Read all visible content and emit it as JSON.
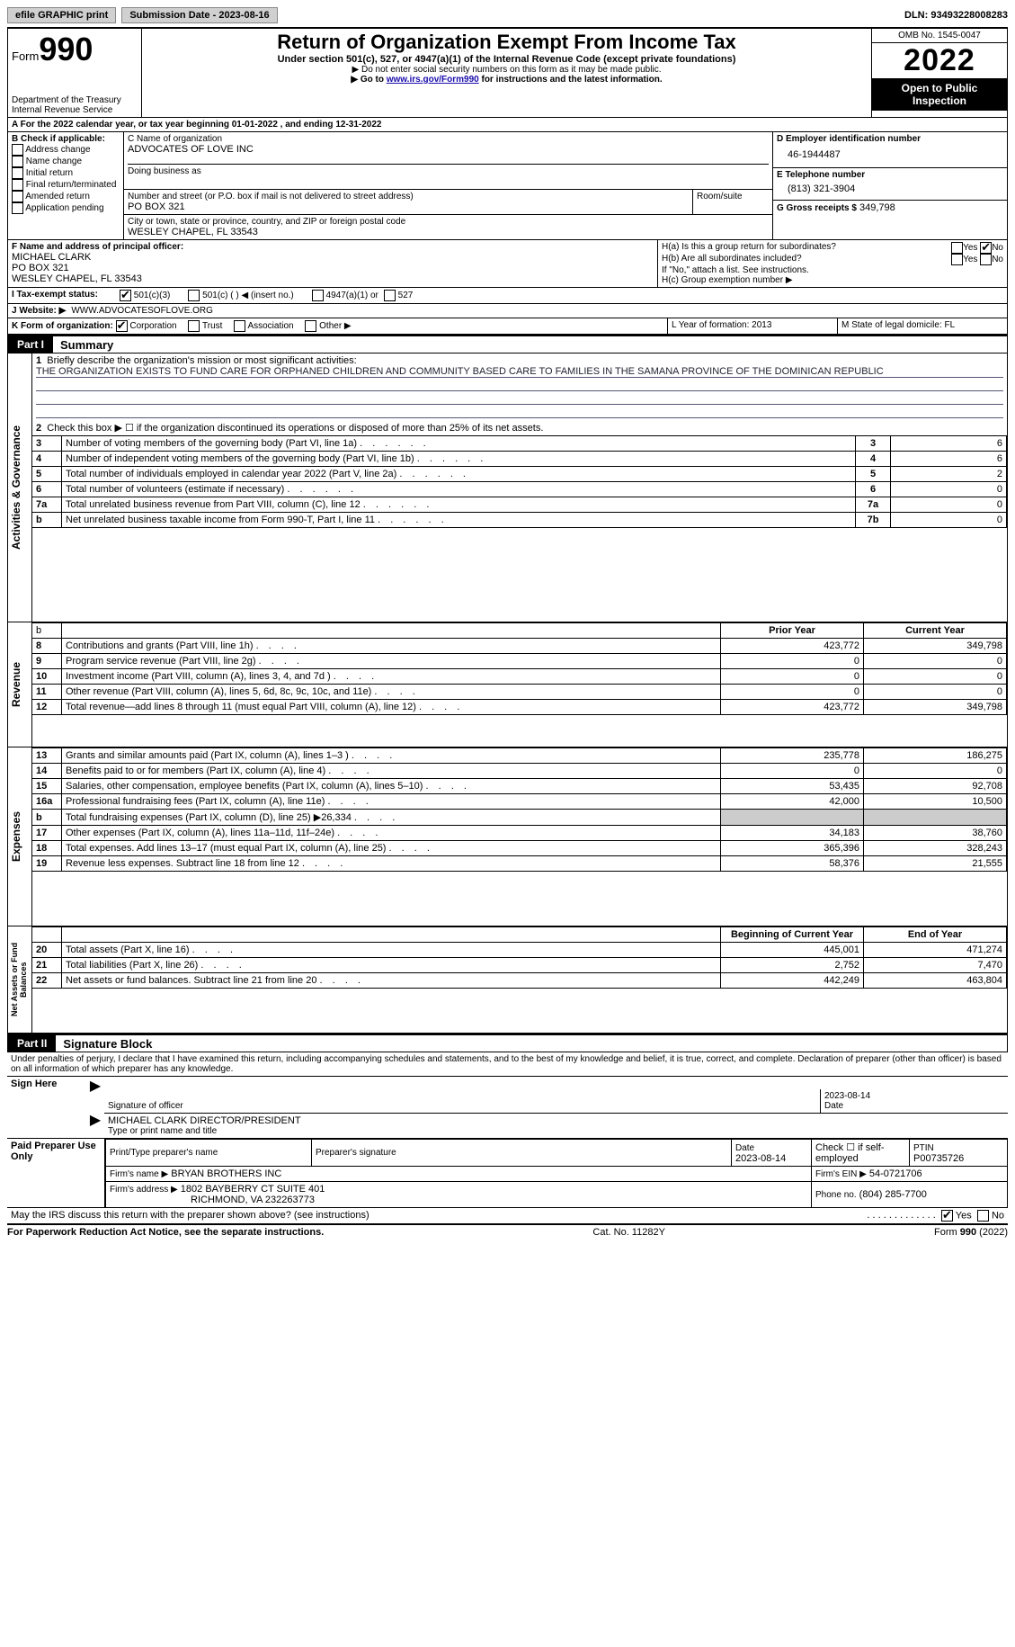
{
  "topbar": {
    "efile": "efile GRAPHIC",
    "print": "print",
    "subdate_label": "Submission Date - 2023-08-16",
    "dln_label": "DLN: 93493228008283"
  },
  "header": {
    "form_word": "Form",
    "form_num": "990",
    "dept": "Department of the Treasury",
    "irs": "Internal Revenue Service",
    "title": "Return of Organization Exempt From Income Tax",
    "sub": "Under section 501(c), 527, or 4947(a)(1) of the Internal Revenue Code (except private foundations)",
    "note1": "▶ Do not enter social security numbers on this form as it may be made public.",
    "note2_pre": "▶ Go to ",
    "note2_link": "www.irs.gov/Form990",
    "note2_post": " for instructions and the latest information.",
    "omb": "OMB No. 1545-0047",
    "year": "2022",
    "otp1": "Open to Public",
    "otp2": "Inspection"
  },
  "period": {
    "line": "A For the 2022 calendar year, or tax year beginning 01-01-2022 , and ending 12-31-2022"
  },
  "blockB": {
    "label": "B Check if applicable:",
    "items": [
      "Address change",
      "Name change",
      "Initial return",
      "Final return/terminated",
      "Amended return",
      "Application pending"
    ]
  },
  "blockC": {
    "name_label": "C Name of organization",
    "name": "ADVOCATES OF LOVE INC",
    "dba_label": "Doing business as",
    "addr_label": "Number and street (or P.O. box if mail is not delivered to street address)",
    "room_label": "Room/suite",
    "addr": "PO BOX 321",
    "city_label": "City or town, state or province, country, and ZIP or foreign postal code",
    "city": "WESLEY CHAPEL, FL  33543"
  },
  "blockD": {
    "label": "D Employer identification number",
    "value": "46-1944487"
  },
  "blockE": {
    "label": "E Telephone number",
    "value": "(813) 321-3904"
  },
  "blockG": {
    "label": "G Gross receipts $",
    "value": "349,798"
  },
  "blockF": {
    "label": "F Name and address of principal officer:",
    "name": "MICHAEL CLARK",
    "addr1": "PO BOX 321",
    "addr2": "WESLEY CHAPEL, FL  33543"
  },
  "blockH": {
    "a": "H(a) Is this a group return for subordinates?",
    "b": "H(b) Are all subordinates included?",
    "b_note": "If \"No,\" attach a list. See instructions.",
    "c": "H(c) Group exemption number ▶",
    "yes": "Yes",
    "no": "No"
  },
  "blockI": {
    "label": "I Tax-exempt status:",
    "opt1": "501(c)(3)",
    "opt2": "501(c) (   ) ◀ (insert no.)",
    "opt3": "4947(a)(1) or",
    "opt4": "527"
  },
  "blockJ": {
    "label": "J Website: ▶",
    "value": "WWW.ADVOCATESOFLOVE.ORG"
  },
  "blockK": {
    "label": "K Form of organization:",
    "corp": "Corporation",
    "trust": "Trust",
    "assoc": "Association",
    "other": "Other ▶"
  },
  "blockL": {
    "label": "L Year of formation: 2013"
  },
  "blockM": {
    "label": "M State of legal domicile: FL"
  },
  "part1": {
    "label": "Part I",
    "title": "Summary"
  },
  "summary": {
    "q1": "Briefly describe the organization's mission or most significant activities:",
    "mission": "THE ORGANIZATION EXISTS TO FUND CARE FOR ORPHANED CHILDREN AND COMMUNITY BASED CARE TO FAMILIES IN THE SAMANA PROVINCE OF THE DOMINICAN REPUBLIC",
    "q2": "Check this box ▶ ☐ if the organization discontinued its operations or disposed of more than 25% of its net assets.",
    "rows_top": [
      {
        "n": "3",
        "t": "Number of voting members of the governing body (Part VI, line 1a)",
        "box": "3",
        "v": "6"
      },
      {
        "n": "4",
        "t": "Number of independent voting members of the governing body (Part VI, line 1b)",
        "box": "4",
        "v": "6"
      },
      {
        "n": "5",
        "t": "Total number of individuals employed in calendar year 2022 (Part V, line 2a)",
        "box": "5",
        "v": "2"
      },
      {
        "n": "6",
        "t": "Total number of volunteers (estimate if necessary)",
        "box": "6",
        "v": "0"
      },
      {
        "n": "7a",
        "t": "Total unrelated business revenue from Part VIII, column (C), line 12",
        "box": "7a",
        "v": "0"
      },
      {
        "n": "b",
        "t": "Net unrelated business taxable income from Form 990-T, Part I, line 11",
        "box": "7b",
        "v": "0"
      }
    ],
    "col_prior": "Prior Year",
    "col_curr": "Current Year",
    "revenue": [
      {
        "n": "8",
        "t": "Contributions and grants (Part VIII, line 1h)",
        "p": "423,772",
        "c": "349,798"
      },
      {
        "n": "9",
        "t": "Program service revenue (Part VIII, line 2g)",
        "p": "0",
        "c": "0"
      },
      {
        "n": "10",
        "t": "Investment income (Part VIII, column (A), lines 3, 4, and 7d )",
        "p": "0",
        "c": "0"
      },
      {
        "n": "11",
        "t": "Other revenue (Part VIII, column (A), lines 5, 6d, 8c, 9c, 10c, and 11e)",
        "p": "0",
        "c": "0"
      },
      {
        "n": "12",
        "t": "Total revenue—add lines 8 through 11 (must equal Part VIII, column (A), line 12)",
        "p": "423,772",
        "c": "349,798"
      }
    ],
    "expenses": [
      {
        "n": "13",
        "t": "Grants and similar amounts paid (Part IX, column (A), lines 1–3 )",
        "p": "235,778",
        "c": "186,275"
      },
      {
        "n": "14",
        "t": "Benefits paid to or for members (Part IX, column (A), line 4)",
        "p": "0",
        "c": "0"
      },
      {
        "n": "15",
        "t": "Salaries, other compensation, employee benefits (Part IX, column (A), lines 5–10)",
        "p": "53,435",
        "c": "92,708"
      },
      {
        "n": "16a",
        "t": "Professional fundraising fees (Part IX, column (A), line 11e)",
        "p": "42,000",
        "c": "10,500"
      },
      {
        "n": "b",
        "t": "Total fundraising expenses (Part IX, column (D), line 25) ▶26,334",
        "p": "",
        "c": "",
        "shade": true
      },
      {
        "n": "17",
        "t": "Other expenses (Part IX, column (A), lines 11a–11d, 11f–24e)",
        "p": "34,183",
        "c": "38,760"
      },
      {
        "n": "18",
        "t": "Total expenses. Add lines 13–17 (must equal Part IX, column (A), line 25)",
        "p": "365,396",
        "c": "328,243"
      },
      {
        "n": "19",
        "t": "Revenue less expenses. Subtract line 18 from line 12",
        "p": "58,376",
        "c": "21,555"
      }
    ],
    "col_begin": "Beginning of Current Year",
    "col_end": "End of Year",
    "netassets": [
      {
        "n": "20",
        "t": "Total assets (Part X, line 16)",
        "p": "445,001",
        "c": "471,274"
      },
      {
        "n": "21",
        "t": "Total liabilities (Part X, line 26)",
        "p": "2,752",
        "c": "7,470"
      },
      {
        "n": "22",
        "t": "Net assets or fund balances. Subtract line 21 from line 20",
        "p": "442,249",
        "c": "463,804"
      }
    ],
    "side_ag": "Activities & Governance",
    "side_rev": "Revenue",
    "side_exp": "Expenses",
    "side_na": "Net Assets or Fund Balances"
  },
  "part2": {
    "label": "Part II",
    "title": "Signature Block"
  },
  "penalties": "Under penalties of perjury, I declare that I have examined this return, including accompanying schedules and statements, and to the best of my knowledge and belief, it is true, correct, and complete. Declaration of preparer (other than officer) is based on all information of which preparer has any knowledge.",
  "sign": {
    "here": "Sign Here",
    "sig_label": "Signature of officer",
    "date_label": "Date",
    "date": "2023-08-14",
    "name": "MICHAEL CLARK  DIRECTOR/PRESIDENT",
    "name_label": "Type or print name and title"
  },
  "paid": {
    "here": "Paid Preparer Use Only",
    "col1": "Print/Type preparer's name",
    "col2": "Preparer's signature",
    "col3_label": "Date",
    "col3": "2023-08-14",
    "col4_label": "Check ☐ if self-employed",
    "col5_label": "PTIN",
    "col5": "P00735726",
    "firm_label": "Firm's name    ▶",
    "firm": "BRYAN BROTHERS INC",
    "ein_label": "Firm's EIN ▶",
    "ein": "54-0721706",
    "addr_label": "Firm's address ▶",
    "addr1": "1802 BAYBERRY CT SUITE 401",
    "addr2": "RICHMOND, VA  232263773",
    "phone_label": "Phone no.",
    "phone": "(804) 285-7700"
  },
  "discuss": {
    "q": "May the IRS discuss this return with the preparer shown above? (see instructions)",
    "yes": "Yes",
    "no": "No"
  },
  "footer": {
    "left": "For Paperwork Reduction Act Notice, see the separate instructions.",
    "mid": "Cat. No. 11282Y",
    "right": "Form 990 (2022)"
  }
}
